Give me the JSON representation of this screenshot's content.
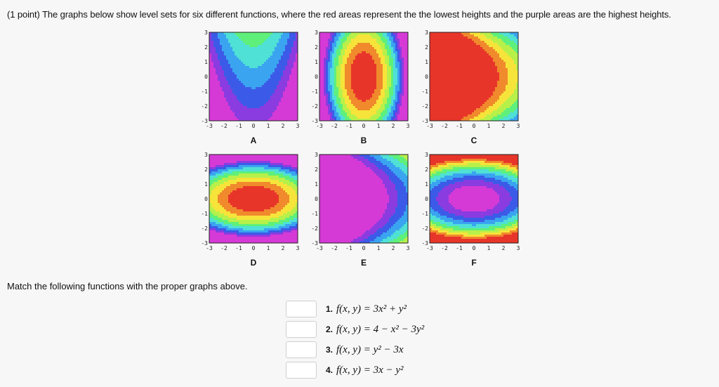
{
  "prompt": "(1 point) The graphs below show level sets for six different functions, where the red areas represent the the lowest heights and the purple areas are the highest heights.",
  "match_instruction": "Match the following functions with the proper graphs above.",
  "axis_ticks": [
    "-3",
    "-2",
    "-1",
    "0",
    "1",
    "2",
    "3"
  ],
  "graphs": [
    {
      "label": "A",
      "type": "saddle-up"
    },
    {
      "label": "B",
      "type": "ellipse-vertical"
    },
    {
      "label": "C",
      "type": "parabola-right"
    },
    {
      "label": "D",
      "type": "ellipse-horizontal"
    },
    {
      "label": "E",
      "type": "parabola-left"
    },
    {
      "label": "F",
      "type": "ellipse-horizontal-inverted"
    }
  ],
  "answers": [
    {
      "number": "1.",
      "formula": "f(x, y) = 3x² + y²",
      "value": ""
    },
    {
      "number": "2.",
      "formula": "f(x, y) = 4 − x² − 3y²",
      "value": ""
    },
    {
      "number": "3.",
      "formula": "f(x, y) = y² − 3x",
      "value": ""
    },
    {
      "number": "4.",
      "formula": "f(x, y) = 3x − y²",
      "value": ""
    }
  ],
  "palette": [
    "#e8352a",
    "#f08a2c",
    "#f7e43a",
    "#b8f04a",
    "#5ef07a",
    "#4fe0d6",
    "#3aa4f0",
    "#3c5ae8",
    "#8a3ce0",
    "#d63ad6"
  ]
}
